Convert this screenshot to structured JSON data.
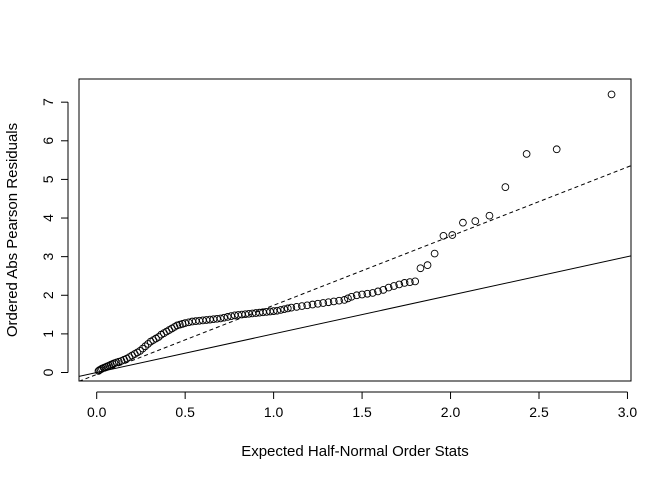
{
  "chart_data": {
    "type": "scatter",
    "title": "",
    "xlabel": "Expected Half-Normal Order Stats",
    "ylabel": "Ordered Abs Pearson Residuals",
    "xlim": [
      -0.1,
      3.02
    ],
    "ylim": [
      -0.22,
      7.6
    ],
    "x_ticks": [
      0.0,
      0.5,
      1.0,
      1.5,
      2.0,
      2.5,
      3.0
    ],
    "x_tick_labels": [
      "0.0",
      "0.5",
      "1.0",
      "1.5",
      "2.0",
      "2.5",
      "3.0"
    ],
    "y_ticks": [
      0,
      1,
      2,
      3,
      4,
      5,
      6,
      7
    ],
    "y_tick_labels": [
      "0",
      "1",
      "2",
      "3",
      "4",
      "5",
      "6",
      "7"
    ],
    "grid": false,
    "legend": "none",
    "marker": "open-circle",
    "lines": [
      {
        "style": "solid",
        "intercept": 0,
        "slope": 1
      },
      {
        "style": "dashed",
        "intercept": -0.05,
        "slope": 1.79
      }
    ],
    "points": [
      [
        0.01,
        0.04
      ],
      [
        0.015,
        0.06
      ],
      [
        0.022,
        0.08
      ],
      [
        0.03,
        0.1
      ],
      [
        0.04,
        0.12
      ],
      [
        0.05,
        0.14
      ],
      [
        0.06,
        0.16
      ],
      [
        0.07,
        0.18
      ],
      [
        0.08,
        0.2
      ],
      [
        0.09,
        0.22
      ],
      [
        0.1,
        0.24
      ],
      [
        0.112,
        0.26
      ],
      [
        0.125,
        0.28
      ],
      [
        0.14,
        0.3
      ],
      [
        0.155,
        0.33
      ],
      [
        0.17,
        0.36
      ],
      [
        0.185,
        0.4
      ],
      [
        0.2,
        0.44
      ],
      [
        0.215,
        0.48
      ],
      [
        0.23,
        0.52
      ],
      [
        0.245,
        0.56
      ],
      [
        0.26,
        0.62
      ],
      [
        0.275,
        0.68
      ],
      [
        0.29,
        0.74
      ],
      [
        0.305,
        0.8
      ],
      [
        0.32,
        0.84
      ],
      [
        0.335,
        0.88
      ],
      [
        0.35,
        0.92
      ],
      [
        0.365,
        0.98
      ],
      [
        0.38,
        1.02
      ],
      [
        0.395,
        1.06
      ],
      [
        0.41,
        1.1
      ],
      [
        0.425,
        1.14
      ],
      [
        0.44,
        1.18
      ],
      [
        0.455,
        1.22
      ],
      [
        0.47,
        1.24
      ],
      [
        0.485,
        1.26
      ],
      [
        0.5,
        1.28
      ],
      [
        0.52,
        1.3
      ],
      [
        0.54,
        1.32
      ],
      [
        0.56,
        1.33
      ],
      [
        0.58,
        1.34
      ],
      [
        0.6,
        1.35
      ],
      [
        0.62,
        1.36
      ],
      [
        0.64,
        1.37
      ],
      [
        0.66,
        1.38
      ],
      [
        0.68,
        1.39
      ],
      [
        0.7,
        1.4
      ],
      [
        0.72,
        1.42
      ],
      [
        0.74,
        1.44
      ],
      [
        0.76,
        1.46
      ],
      [
        0.78,
        1.48
      ],
      [
        0.8,
        1.49
      ],
      [
        0.82,
        1.5
      ],
      [
        0.84,
        1.51
      ],
      [
        0.86,
        1.52
      ],
      [
        0.88,
        1.53
      ],
      [
        0.9,
        1.54
      ],
      [
        0.92,
        1.55
      ],
      [
        0.94,
        1.56
      ],
      [
        0.96,
        1.57
      ],
      [
        0.98,
        1.58
      ],
      [
        1.0,
        1.59
      ],
      [
        1.02,
        1.6
      ],
      [
        1.04,
        1.62
      ],
      [
        1.06,
        1.64
      ],
      [
        1.08,
        1.66
      ],
      [
        1.1,
        1.68
      ],
      [
        1.13,
        1.7
      ],
      [
        1.16,
        1.72
      ],
      [
        1.19,
        1.74
      ],
      [
        1.22,
        1.76
      ],
      [
        1.25,
        1.78
      ],
      [
        1.28,
        1.8
      ],
      [
        1.31,
        1.82
      ],
      [
        1.34,
        1.84
      ],
      [
        1.37,
        1.86
      ],
      [
        1.4,
        1.88
      ],
      [
        1.42,
        1.92
      ],
      [
        1.44,
        1.96
      ],
      [
        1.47,
        2.0
      ],
      [
        1.5,
        2.02
      ],
      [
        1.53,
        2.04
      ],
      [
        1.56,
        2.06
      ],
      [
        1.59,
        2.1
      ],
      [
        1.62,
        2.14
      ],
      [
        1.65,
        2.2
      ],
      [
        1.68,
        2.24
      ],
      [
        1.71,
        2.28
      ],
      [
        1.74,
        2.32
      ],
      [
        1.77,
        2.34
      ],
      [
        1.8,
        2.36
      ],
      [
        1.83,
        2.7
      ],
      [
        1.87,
        2.78
      ],
      [
        1.91,
        3.08
      ],
      [
        1.96,
        3.54
      ],
      [
        2.01,
        3.56
      ],
      [
        2.07,
        3.88
      ],
      [
        2.14,
        3.92
      ],
      [
        2.22,
        4.06
      ],
      [
        2.31,
        4.8
      ],
      [
        2.43,
        5.66
      ],
      [
        2.6,
        5.78
      ],
      [
        2.91,
        7.2
      ]
    ]
  }
}
